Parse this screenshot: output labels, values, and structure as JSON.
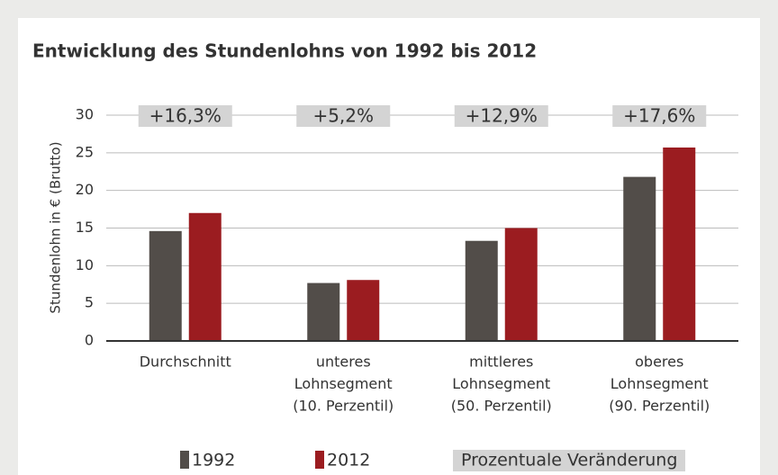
{
  "chart_data": {
    "type": "bar",
    "title": "Entwicklung des Stundenlohns von 1992 bis 2012",
    "y_label": "Stundenlohn in € (Brutto)",
    "categories": [
      [
        "Durchschnitt"
      ],
      [
        "unteres",
        "Lohnsegment",
        "(10. Perzentil)"
      ],
      [
        "mittleres",
        "Lohnsegment",
        "(50. Perzentil)"
      ],
      [
        "oberes",
        "Lohnsegment",
        "(90. Perzentil)"
      ]
    ],
    "series": [
      {
        "name": "1992",
        "color": "#524d49",
        "values": [
          14.6,
          7.7,
          13.3,
          21.8
        ]
      },
      {
        "name": "2012",
        "color": "#9b1c20",
        "values": [
          17.0,
          8.1,
          15.0,
          25.7
        ]
      }
    ],
    "changes": {
      "name": "Prozentuale Veränderung",
      "color": "#d4d4d4",
      "values": [
        16.3,
        5.2,
        12.9,
        17.6
      ],
      "value_labels": [
        "+16,3%",
        "+5,2%",
        "+12,9%",
        "+17,6%"
      ]
    },
    "ylim": [
      0,
      30
    ],
    "yticks": [
      0,
      5,
      10,
      15,
      20,
      25,
      30
    ],
    "grid": true
  }
}
